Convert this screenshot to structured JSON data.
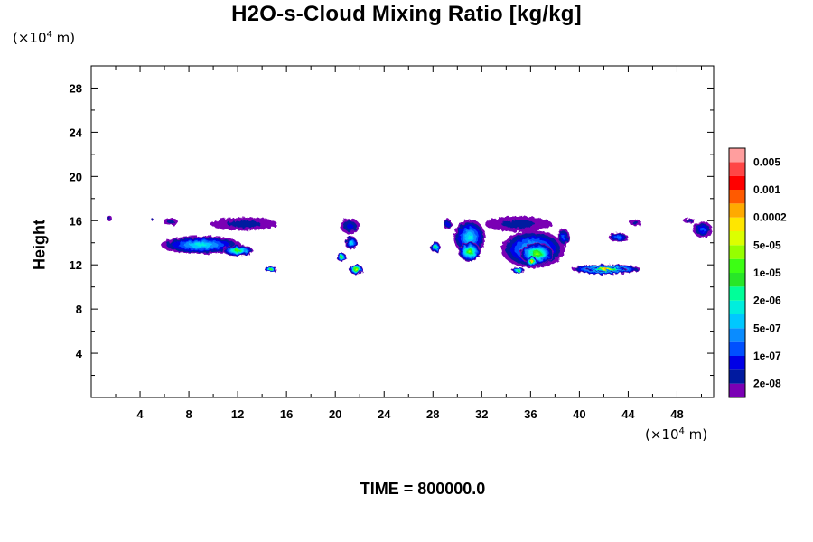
{
  "title": "H2O-s-Cloud Mixing Ratio [kg/kg]",
  "y_unit": {
    "prefix": "(×10",
    "exp": "4",
    "suffix": " m)"
  },
  "x_unit": {
    "prefix": "(×10",
    "exp": "4",
    "suffix": " m)"
  },
  "footer": "TIME = 800000.0",
  "chart_data": {
    "type": "heatmap",
    "title": "H2O-s-Cloud Mixing Ratio [kg/kg]",
    "xlabel": "",
    "ylabel": "Height",
    "x_unit": "×10^4 m",
    "y_unit": "×10^4 m",
    "xlim": [
      0,
      51
    ],
    "ylim": [
      0,
      30
    ],
    "x_ticks": [
      4,
      8,
      12,
      16,
      20,
      24,
      28,
      32,
      36,
      40,
      44,
      48
    ],
    "y_ticks": [
      4,
      8,
      12,
      16,
      20,
      24,
      28
    ],
    "colorbar": {
      "colors": [
        "#7a00b4",
        "#001aa0",
        "#0000e6",
        "#0050ff",
        "#0a8cff",
        "#00c8ff",
        "#00eedd",
        "#00ff99",
        "#28e628",
        "#3cff14",
        "#96ff00",
        "#dcff00",
        "#ffe600",
        "#ffaa00",
        "#ff5a00",
        "#ff0000",
        "#ff4646",
        "#ff9e9e"
      ],
      "labels": [
        "2e-08",
        "1e-07",
        "5e-07",
        "2e-06",
        "1e-05",
        "5e-05",
        "0.0002",
        "0.001",
        "0.005"
      ]
    },
    "clouds": [
      {
        "x": 1.5,
        "y": 16.2,
        "w": 0.4,
        "h": 0.5,
        "level": 1
      },
      {
        "x": 5.0,
        "y": 16.1,
        "w": 0.2,
        "h": 0.2,
        "level": 1
      },
      {
        "x": 6.5,
        "y": 15.9,
        "w": 1.2,
        "h": 0.6,
        "level": 1
      },
      {
        "x": 9.0,
        "y": 13.8,
        "w": 6.6,
        "h": 1.6,
        "level": 6
      },
      {
        "x": 12.5,
        "y": 15.7,
        "w": 5.5,
        "h": 1.2,
        "level": 1
      },
      {
        "x": 12.0,
        "y": 13.3,
        "w": 2.5,
        "h": 1.0,
        "level": 9
      },
      {
        "x": 14.7,
        "y": 11.6,
        "w": 1.0,
        "h": 0.5,
        "level": 9
      },
      {
        "x": 21.2,
        "y": 15.5,
        "w": 1.6,
        "h": 1.4,
        "level": 2
      },
      {
        "x": 21.3,
        "y": 14.0,
        "w": 1.0,
        "h": 1.2,
        "level": 6
      },
      {
        "x": 20.5,
        "y": 12.7,
        "w": 0.8,
        "h": 0.8,
        "level": 9
      },
      {
        "x": 21.7,
        "y": 11.6,
        "w": 1.1,
        "h": 0.9,
        "level": 12
      },
      {
        "x": 28.2,
        "y": 13.6,
        "w": 0.8,
        "h": 1.0,
        "level": 8
      },
      {
        "x": 29.2,
        "y": 15.7,
        "w": 0.7,
        "h": 1.0,
        "level": 2
      },
      {
        "x": 31.0,
        "y": 14.5,
        "w": 2.6,
        "h": 3.2,
        "level": 6
      },
      {
        "x": 31.0,
        "y": 13.2,
        "w": 1.8,
        "h": 1.8,
        "level": 10
      },
      {
        "x": 35.0,
        "y": 15.7,
        "w": 5.5,
        "h": 1.4,
        "level": 1
      },
      {
        "x": 36.2,
        "y": 13.4,
        "w": 5.2,
        "h": 3.4,
        "level": 6
      },
      {
        "x": 36.5,
        "y": 13.0,
        "w": 2.8,
        "h": 2.0,
        "level": 10
      },
      {
        "x": 36.1,
        "y": 12.3,
        "w": 0.8,
        "h": 1.0,
        "level": 13
      },
      {
        "x": 35.0,
        "y": 11.5,
        "w": 1.0,
        "h": 0.5,
        "level": 9
      },
      {
        "x": 38.7,
        "y": 14.5,
        "w": 1.0,
        "h": 1.6,
        "level": 3
      },
      {
        "x": 42.2,
        "y": 11.6,
        "w": 5.6,
        "h": 0.9,
        "level": 11
      },
      {
        "x": 42.2,
        "y": 11.6,
        "w": 3.4,
        "h": 0.4,
        "level": 13
      },
      {
        "x": 43.2,
        "y": 14.5,
        "w": 1.6,
        "h": 0.8,
        "level": 4
      },
      {
        "x": 44.6,
        "y": 15.8,
        "w": 1.0,
        "h": 0.6,
        "level": 1
      },
      {
        "x": 49.0,
        "y": 16.0,
        "w": 1.0,
        "h": 0.4,
        "level": 1
      },
      {
        "x": 50.1,
        "y": 15.2,
        "w": 1.6,
        "h": 1.4,
        "level": 3
      }
    ]
  }
}
